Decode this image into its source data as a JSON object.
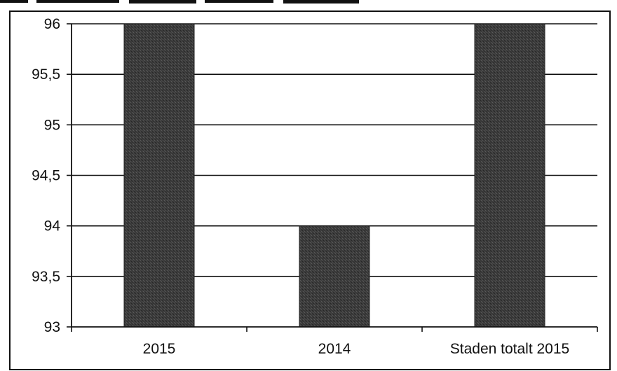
{
  "chart_data": {
    "type": "bar",
    "title": "",
    "xlabel": "",
    "ylabel": "",
    "categories": [
      "2015",
      "2014",
      "Staden totalt 2015"
    ],
    "series": [
      {
        "values": [
          96,
          94,
          96
        ]
      }
    ],
    "ylim": [
      93,
      96
    ],
    "yticks": [
      93,
      93.5,
      94,
      94.5,
      95,
      95.5,
      96
    ],
    "ytick_labels": [
      "93",
      "93,5",
      "94",
      "94,5",
      "95",
      "95,5",
      "96"
    ],
    "grid": true,
    "legend": "none",
    "colors": {
      "bar": "#3c3c3c",
      "frame": "#111111",
      "gridline": "#111111",
      "background": "#ffffff"
    }
  }
}
